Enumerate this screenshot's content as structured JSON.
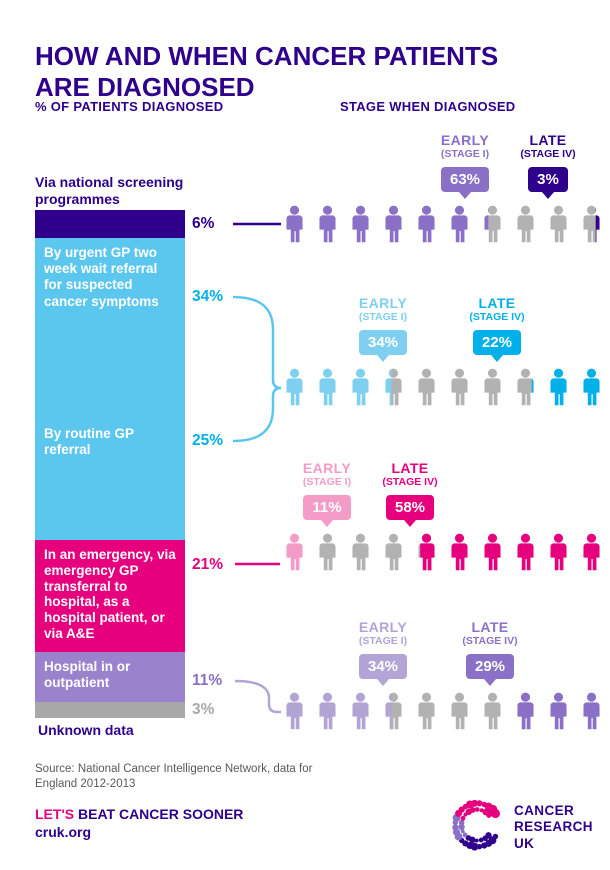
{
  "title": "HOW AND WHEN CANCER PATIENTS ARE DIAGNOSED",
  "columns": {
    "left": "% OF PATIENTS DIAGNOSED",
    "right": "STAGE WHEN DIAGNOSED"
  },
  "categories": [
    {
      "label": "Via national screening programmes",
      "pct": "6%"
    },
    {
      "label": "By urgent GP two week wait referral for suspected cancer symptoms",
      "pct": "34%"
    },
    {
      "label": "By routine GP referral",
      "pct": "25%"
    },
    {
      "label": "In an emergency, via emergency GP transferral to hospital, as a hospital patient, or via A&E",
      "pct": "21%"
    },
    {
      "label": "Hospital in or outpatient",
      "pct": "11%"
    },
    {
      "label": "Unknown data",
      "pct": "3%"
    }
  ],
  "rows": [
    {
      "early": {
        "label": "EARLY",
        "sub": "(STAGE I)",
        "value": "63%",
        "color": "purple_mid"
      },
      "late": {
        "label": "LATE",
        "sub": "(STAGE IV)",
        "value": "3%",
        "color": "navy"
      },
      "icons": [
        {
          "c": "purple_mid"
        },
        {
          "c": "purple_mid"
        },
        {
          "c": "purple_mid"
        },
        {
          "c": "purple_mid"
        },
        {
          "c": "purple_mid"
        },
        {
          "c": "purple_mid"
        },
        {
          "c": "gray_icon",
          "ov": "purple_mid",
          "side": "left",
          "frac": 0.3
        },
        {
          "c": "gray_icon"
        },
        {
          "c": "gray_icon"
        },
        {
          "c": "gray_icon",
          "ov": "navy",
          "side": "right",
          "frac": 0.3
        }
      ]
    },
    {
      "early": {
        "label": "EARLY",
        "sub": "(STAGE I)",
        "value": "34%",
        "color": "light_blue"
      },
      "late": {
        "label": "LATE",
        "sub": "(STAGE IV)",
        "value": "22%",
        "color": "cyan"
      },
      "icons": [
        {
          "c": "light_blue"
        },
        {
          "c": "light_blue"
        },
        {
          "c": "light_blue"
        },
        {
          "c": "gray_icon",
          "ov": "light_blue",
          "side": "left",
          "frac": 0.4
        },
        {
          "c": "gray_icon"
        },
        {
          "c": "gray_icon"
        },
        {
          "c": "gray_icon"
        },
        {
          "c": "gray_icon",
          "ov": "cyan",
          "side": "right",
          "frac": 0.2
        },
        {
          "c": "cyan"
        },
        {
          "c": "cyan"
        }
      ]
    },
    {
      "early": {
        "label": "EARLY",
        "sub": "(STAGE I)",
        "value": "11%",
        "color": "pink_light"
      },
      "late": {
        "label": "LATE",
        "sub": "(STAGE IV)",
        "value": "58%",
        "color": "magenta"
      },
      "icons": [
        {
          "c": "pink_light"
        },
        {
          "c": "gray_icon",
          "ov": "pink_light",
          "side": "left",
          "frac": 0.1
        },
        {
          "c": "gray_icon"
        },
        {
          "c": "gray_icon"
        },
        {
          "c": "gray_icon",
          "ov": "magenta",
          "side": "right",
          "frac": 0.8
        },
        {
          "c": "magenta"
        },
        {
          "c": "magenta"
        },
        {
          "c": "magenta"
        },
        {
          "c": "magenta"
        },
        {
          "c": "magenta"
        }
      ]
    },
    {
      "early": {
        "label": "EARLY",
        "sub": "(STAGE I)",
        "value": "34%",
        "color": "lavender"
      },
      "late": {
        "label": "LATE",
        "sub": "(STAGE IV)",
        "value": "29%",
        "color": "purple_mid"
      },
      "icons": [
        {
          "c": "lavender"
        },
        {
          "c": "lavender"
        },
        {
          "c": "lavender"
        },
        {
          "c": "gray_icon",
          "ov": "lavender",
          "side": "left",
          "frac": 0.4
        },
        {
          "c": "gray_icon"
        },
        {
          "c": "gray_icon"
        },
        {
          "c": "gray_icon"
        },
        {
          "c": "gray_icon",
          "ov": "purple_mid",
          "side": "right",
          "frac": 0.9
        },
        {
          "c": "purple_mid"
        },
        {
          "c": "purple_mid"
        }
      ]
    }
  ],
  "source": "Source: National Cancer Intelligence Network, data for England 2012-2013",
  "footer": {
    "lets": "LET'S",
    "rest": "BEAT CANCER SOONER",
    "url": "cruk.org"
  },
  "logo": {
    "line1": "CANCER",
    "line2": "RESEARCH",
    "line3": "UK"
  },
  "palette": {
    "navy": "#2e008b",
    "magenta": "#e6007e",
    "sky_blue": "#5bc6ee",
    "light_blue": "#7fd0f0",
    "cyan": "#00b0e8",
    "purple_mid": "#8a70c6",
    "purple_bar": "#9a82cc",
    "lavender": "#b3a4d6",
    "pink_light": "#f59bc8",
    "gray_icon": "#b2b2b2",
    "gray_bar": "#a8a8a8",
    "text_gray": "#58595b"
  },
  "chart_data": {
    "type": "pictogram",
    "title": "HOW AND WHEN CANCER PATIENTS ARE DIAGNOSED",
    "percent_diagnosed": {
      "label": "% OF PATIENTS DIAGNOSED",
      "categories": [
        "Via national screening programmes",
        "By urgent GP two week wait referral for suspected cancer symptoms",
        "By routine GP referral",
        "In an emergency, via emergency GP transferral to hospital, as a hospital patient, or via A&E",
        "Hospital in or outpatient",
        "Unknown data"
      ],
      "values": [
        6,
        34,
        25,
        21,
        11,
        3
      ]
    },
    "stage_when_diagnosed": {
      "label": "STAGE WHEN DIAGNOSED",
      "persons_per_row": 10,
      "rows": [
        {
          "route": "Via national screening programmes",
          "early_stage_1_pct": 63,
          "late_stage_4_pct": 3
        },
        {
          "route": "By urgent GP two week wait referral / by routine GP referral",
          "early_stage_1_pct": 34,
          "late_stage_4_pct": 22
        },
        {
          "route": "In an emergency, via emergency GP transferral to hospital, as a hospital patient, or via A&E",
          "early_stage_1_pct": 11,
          "late_stage_4_pct": 58
        },
        {
          "route": "Hospital in or outpatient",
          "early_stage_1_pct": 34,
          "late_stage_4_pct": 29
        }
      ]
    }
  }
}
